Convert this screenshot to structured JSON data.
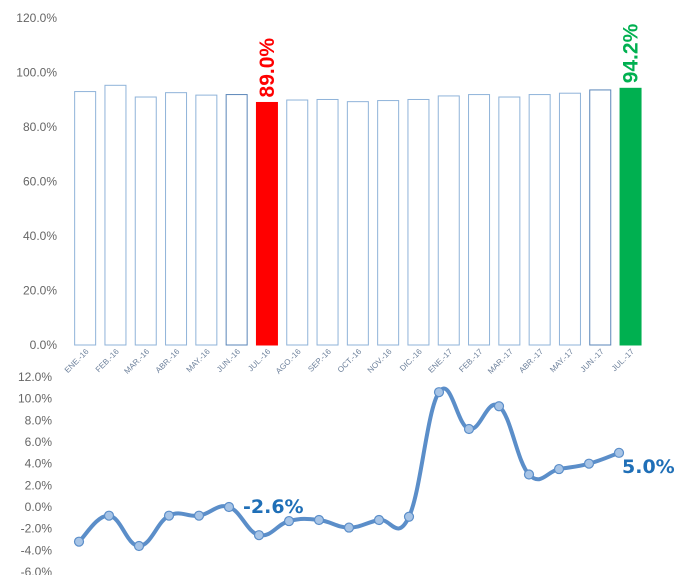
{
  "colors": {
    "bar_outline": "#8fb3d9",
    "bar_outline_dark": "#5a86b8",
    "highlight_low": "#ff0000",
    "highlight_high": "#00b050",
    "line": "#5b8ec9",
    "marker_fill": "#a7c4e6",
    "annotation": "#1f6fb7"
  },
  "chart_data": [
    {
      "type": "bar",
      "categories": [
        "ENE.-16",
        "FEB.-16",
        "MAR.-16",
        "ABR.-16",
        "MAY.-16",
        "JUN.-16",
        "JUL.-16",
        "AGO.-16",
        "SEP.-16",
        "OCT.-16",
        "NOV.-16",
        "DIC.-16",
        "ENE.-17",
        "FEB.-17",
        "MAR.-17",
        "ABR.-17",
        "MAY.-17",
        "JUN.-17",
        "JUL.-17"
      ],
      "values": [
        93.0,
        95.3,
        91.0,
        92.6,
        91.7,
        91.9,
        89.0,
        89.9,
        90.1,
        89.3,
        89.7,
        90.1,
        91.4,
        91.9,
        91.0,
        91.9,
        92.4,
        93.6,
        94.2
      ],
      "ylim": [
        0,
        120
      ],
      "yticks": [
        "0.0%",
        "20.0%",
        "40.0%",
        "60.0%",
        "80.0%",
        "100.0%",
        "120.0%"
      ],
      "highlights": [
        {
          "index": 6,
          "label": "89.0%",
          "color": "#ff0000"
        },
        {
          "index": 18,
          "label": "94.2%",
          "color": "#00b050"
        }
      ],
      "grid": false
    },
    {
      "type": "line",
      "x": [
        "ENE.-16",
        "FEB.-16",
        "MAR.-16",
        "ABR.-16",
        "MAY.-16",
        "JUN.-16",
        "JUL.-16",
        "AGO.-16",
        "SEP.-16",
        "OCT.-16",
        "NOV.-16",
        "DIC.-16",
        "ENE.-17",
        "FEB.-17",
        "MAR.-17",
        "ABR.-17",
        "MAY.-17",
        "JUN.-17",
        "JUL.-17"
      ],
      "values": [
        -3.2,
        -0.8,
        -3.6,
        -0.8,
        -0.8,
        0.0,
        -2.6,
        -1.3,
        -1.2,
        -1.9,
        -1.2,
        -0.9,
        10.6,
        7.2,
        9.3,
        3.0,
        3.5,
        4.0,
        5.0
      ],
      "ylim": [
        -6,
        12
      ],
      "yticks": [
        "-6.0%",
        "-4.0%",
        "-2.0%",
        "0.0%",
        "2.0%",
        "4.0%",
        "6.0%",
        "8.0%",
        "10.0%",
        "12.0%"
      ],
      "annotations": [
        {
          "index": 6,
          "label": "-2.6%"
        },
        {
          "index": 18,
          "label": "5.0%"
        }
      ],
      "grid": false
    }
  ]
}
